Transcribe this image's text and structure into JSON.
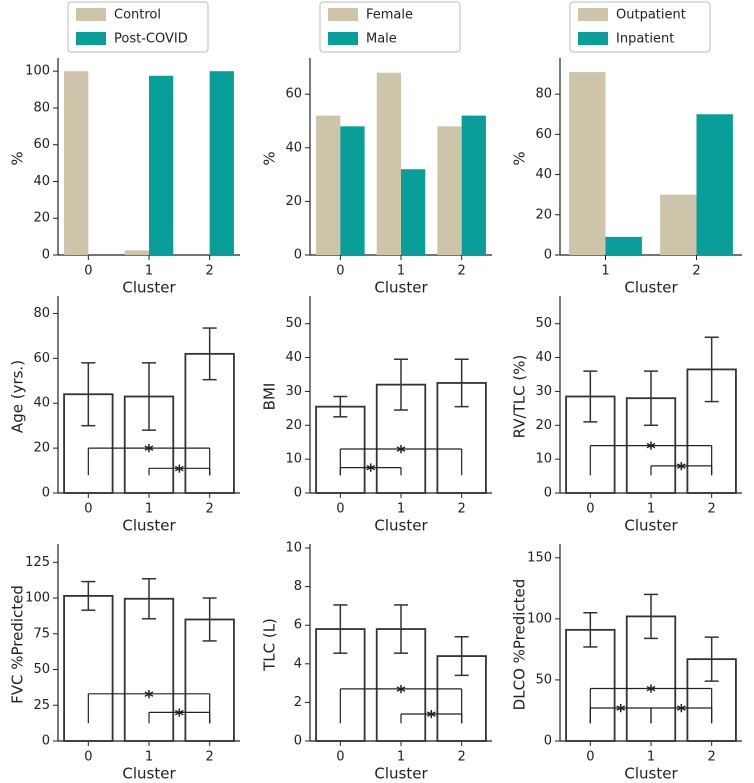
{
  "chart_data": [
    {
      "type": "bar",
      "categories": [
        "0",
        "1",
        "2"
      ],
      "x_label": "Cluster",
      "y_label": "%",
      "series": [
        {
          "name": "Control",
          "color": "#cdc4aa",
          "values": [
            100,
            2.5,
            0
          ]
        },
        {
          "name": "Post-COVID",
          "color": "#0a9e9a",
          "values": [
            0,
            97.5,
            100
          ]
        }
      ],
      "ylim": [
        0,
        105
      ],
      "yticks": [
        0,
        20,
        40,
        60,
        80,
        100
      ]
    },
    {
      "type": "bar",
      "categories": [
        "0",
        "1",
        "2"
      ],
      "x_label": "Cluster",
      "y_label": "%",
      "series": [
        {
          "name": "Female",
          "color": "#cdc4aa",
          "values": [
            52,
            68,
            48
          ]
        },
        {
          "name": "Male",
          "color": "#0a9e9a",
          "values": [
            48,
            32,
            52
          ]
        }
      ],
      "ylim": [
        0,
        72
      ],
      "yticks": [
        0,
        20,
        40,
        60
      ]
    },
    {
      "type": "bar",
      "categories": [
        "1",
        "2"
      ],
      "x_label": "Cluster",
      "y_label": "%",
      "series": [
        {
          "name": "Outpatient",
          "color": "#cdc4aa",
          "values": [
            91,
            30
          ]
        },
        {
          "name": "Inpatient",
          "color": "#0a9e9a",
          "values": [
            9,
            70
          ]
        }
      ],
      "ylim": [
        0,
        96
      ],
      "yticks": [
        0,
        20,
        40,
        60,
        80
      ]
    },
    {
      "type": "bar_error",
      "categories": [
        "0",
        "1",
        "2"
      ],
      "x_label": "Cluster",
      "y_label": "Age (yrs.)",
      "values": [
        44,
        43,
        62
      ],
      "errors": [
        14,
        15,
        11.5
      ],
      "ylim": [
        0,
        86
      ],
      "yticks": [
        0,
        20,
        40,
        60,
        80
      ],
      "brackets": [
        {
          "from": 0,
          "to": 2,
          "y": 20,
          "label": "*"
        },
        {
          "from": 1,
          "to": 2,
          "y": 11,
          "label": "*"
        }
      ]
    },
    {
      "type": "bar_error",
      "categories": [
        "0",
        "1",
        "2"
      ],
      "x_label": "Cluster",
      "y_label": "BMI",
      "values": [
        25.5,
        32,
        32.5
      ],
      "errors": [
        3,
        7.5,
        7
      ],
      "ylim": [
        0,
        57
      ],
      "yticks": [
        0,
        10,
        20,
        30,
        40,
        50
      ],
      "brackets": [
        {
          "from": 0,
          "to": 2,
          "y": 13,
          "label": "*"
        },
        {
          "from": 0,
          "to": 1,
          "y": 7.5,
          "label": "*"
        }
      ]
    },
    {
      "type": "bar_error",
      "categories": [
        "0",
        "1",
        "2"
      ],
      "x_label": "Cluster",
      "y_label": "RV/TLC (%)",
      "values": [
        28.5,
        28,
        36.5
      ],
      "errors": [
        7.5,
        8,
        9.5
      ],
      "ylim": [
        0,
        57
      ],
      "yticks": [
        0,
        10,
        20,
        30,
        40,
        50
      ],
      "brackets": [
        {
          "from": 0,
          "to": 2,
          "y": 14,
          "label": "*"
        },
        {
          "from": 1,
          "to": 2,
          "y": 8,
          "label": "*"
        }
      ]
    },
    {
      "type": "bar_error",
      "categories": [
        "0",
        "1",
        "2"
      ],
      "x_label": "Cluster",
      "y_label": "FVC %Predicted",
      "values": [
        101.5,
        99.5,
        85
      ],
      "errors": [
        10,
        14,
        15
      ],
      "ylim": [
        0,
        135
      ],
      "yticks": [
        0,
        25,
        50,
        75,
        100,
        125
      ],
      "brackets": [
        {
          "from": 0,
          "to": 2,
          "y": 33,
          "label": "*"
        },
        {
          "from": 1,
          "to": 2,
          "y": 20,
          "label": "*"
        }
      ]
    },
    {
      "type": "bar_error",
      "categories": [
        "0",
        "1",
        "2"
      ],
      "x_label": "Cluster",
      "y_label": "TLC (L)",
      "values": [
        5.8,
        5.8,
        4.4
      ],
      "errors": [
        1.25,
        1.25,
        1
      ],
      "ylim": [
        0,
        10
      ],
      "yticks": [
        0,
        2,
        4,
        6,
        8,
        10
      ],
      "brackets": [
        {
          "from": 0,
          "to": 2,
          "y": 2.7,
          "label": "*"
        },
        {
          "from": 1,
          "to": 2,
          "y": 1.4,
          "label": "*"
        }
      ]
    },
    {
      "type": "bar_error",
      "categories": [
        "0",
        "1",
        "2"
      ],
      "x_label": "Cluster",
      "y_label": "DLCO %Predicted",
      "values": [
        91,
        102,
        67
      ],
      "errors": [
        14,
        18,
        18
      ],
      "ylim": [
        0,
        158
      ],
      "yticks": [
        0,
        50,
        100,
        150
      ],
      "brackets": [
        {
          "from": 0,
          "to": 2,
          "y": 43,
          "label": "*"
        },
        {
          "from": 0,
          "to": 1,
          "y": 27,
          "label": "*"
        },
        {
          "from": 1,
          "to": 2,
          "y": 27,
          "label": "*"
        }
      ]
    }
  ]
}
